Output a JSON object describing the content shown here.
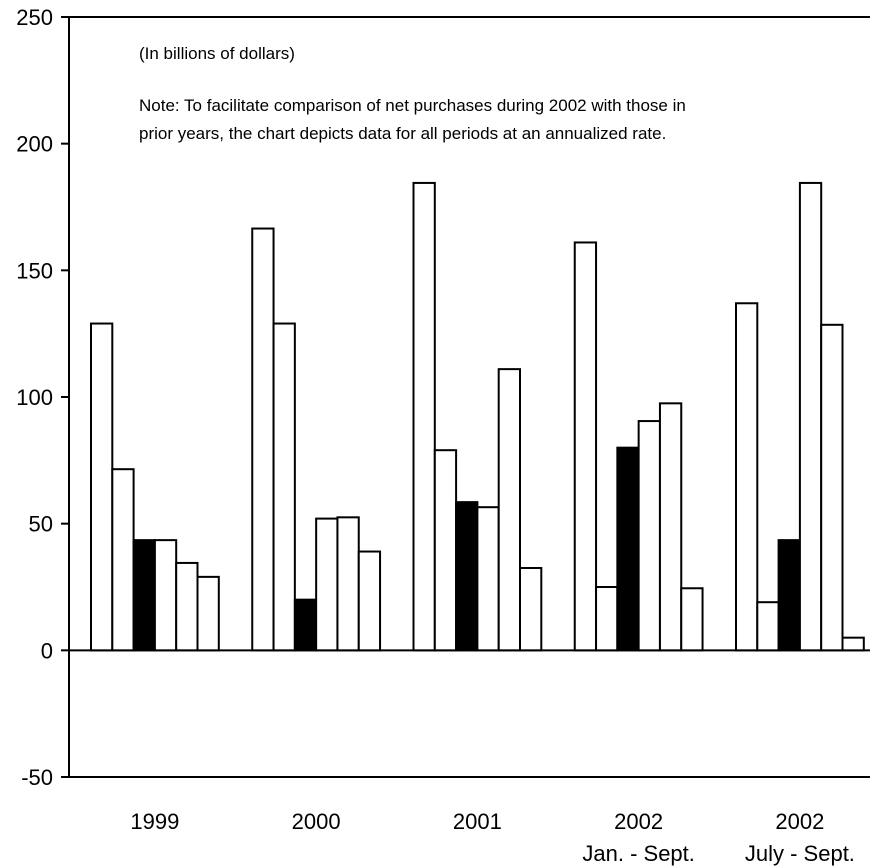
{
  "chart_data": {
    "type": "bar",
    "categories": [
      "1999",
      "2000",
      "2001",
      "2002",
      "2002"
    ],
    "category_sublabels": [
      "",
      "",
      "",
      "Jan. - Sept.",
      "July - Sept."
    ],
    "units_note": "(In billions of dollars)",
    "note_lines": [
      "Note: To facilitate comparison of net purchases during 2002 with those in",
      "prior years, the chart depicts data for all periods at an annualized rate."
    ],
    "bars_per_group": 6,
    "highlighted_bar_index": 2,
    "groups": [
      [
        129,
        71.5,
        43.5,
        43.5,
        34.5,
        29
      ],
      [
        166.5,
        129,
        20,
        52,
        52.5,
        39
      ],
      [
        184.5,
        79,
        58.5,
        56.5,
        111,
        32.5
      ],
      [
        161,
        25,
        80,
        90.5,
        97.5,
        24.5
      ],
      [
        137,
        19,
        43.5,
        184.5,
        128.5,
        5
      ]
    ],
    "ylim": [
      -50,
      250
    ],
    "yticks": [
      250,
      200,
      150,
      100,
      50,
      0,
      -50
    ],
    "colors": {
      "bar_fill": "#ffffff",
      "highlight_fill": "#000000",
      "stroke": "#000000"
    }
  }
}
